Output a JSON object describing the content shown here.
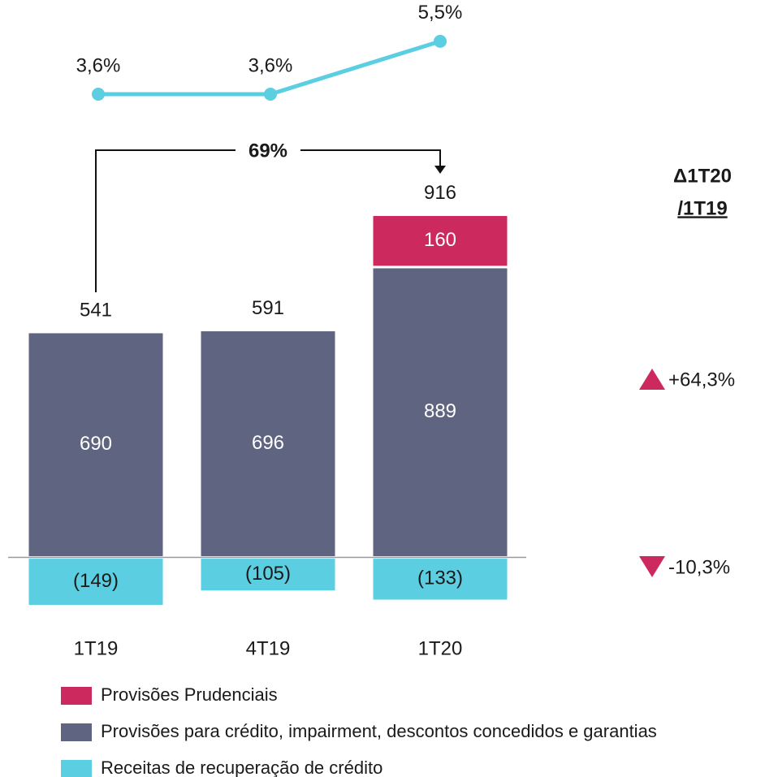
{
  "chart_data": {
    "type": "bar",
    "categories": [
      "1T19",
      "4T19",
      "1T20"
    ],
    "series": [
      {
        "name": "Provisões Prudenciais",
        "color": "#cc2a5f",
        "values": [
          null,
          null,
          160
        ]
      },
      {
        "name": "Provisões para crédito, impairment, descontos concedidos e garantias",
        "color": "#5f6581",
        "values": [
          690,
          696,
          889
        ]
      },
      {
        "name": "Receitas de recuperação de crédito",
        "color": "#5bcfe1",
        "values": [
          -149,
          -105,
          -133
        ],
        "value_labels": [
          "(149)",
          "(105)",
          "(133)"
        ]
      }
    ],
    "totals": [
      541,
      591,
      916
    ],
    "ylim": [
      -200,
      1100
    ],
    "line": {
      "color": "#5bcfe1",
      "axis": "y2",
      "values": [
        3.6,
        3.6,
        5.5
      ],
      "value_labels": [
        "3,6%",
        "3,6%",
        "5,5%"
      ]
    },
    "y2lim": [
      2.9,
      6.4
    ],
    "annotation": "69%",
    "change_header": [
      "Δ1T20",
      "/1T19"
    ],
    "changes": [
      {
        "value": 64.3,
        "label": "+64,3%"
      },
      {
        "value": -10.3,
        "label": "-10,3%"
      }
    ]
  }
}
